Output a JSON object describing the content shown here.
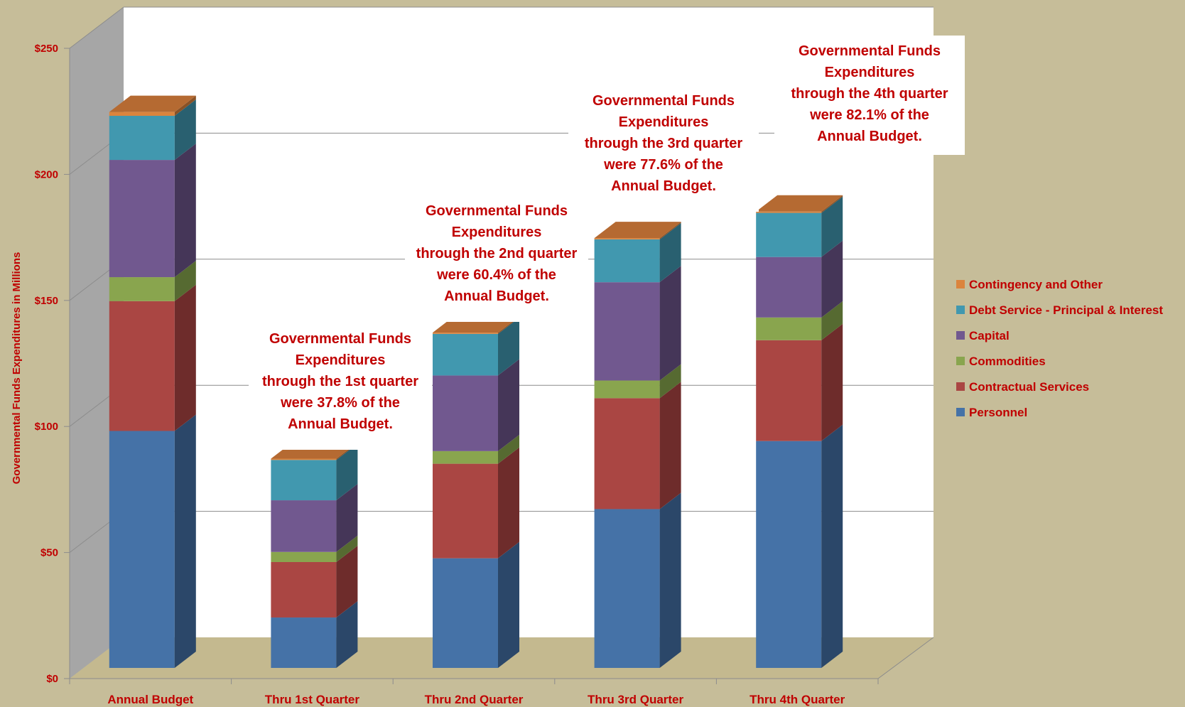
{
  "chart_data": {
    "type": "bar",
    "stacked": true,
    "ylabel": "Governmental Funds Expenditures in Millions",
    "ylim": [
      0,
      250
    ],
    "yticks": [
      "$0",
      "$50",
      "$100",
      "$150",
      "$200",
      "$250"
    ],
    "grid": true,
    "legend_position": "right",
    "categories": [
      "Annual Budget",
      "Thru 1st Quarter",
      "Thru 2nd Quarter",
      "Thru 3rd Quarter",
      "Thru 4th Quarter"
    ],
    "series": [
      {
        "name": "Personnel",
        "color": "#4572a7",
        "side": "#2b4769",
        "top": "#6a93c4",
        "values": [
          94,
          20,
          43.5,
          63,
          90
        ]
      },
      {
        "name": "Contractual Services",
        "color": "#aa4643",
        "side": "#6e2c2b",
        "top": "#c46a67",
        "values": [
          51.5,
          22,
          37.5,
          44,
          40
        ]
      },
      {
        "name": "Commodities",
        "color": "#89a54e",
        "side": "#566a31",
        "top": "#a6bf72",
        "values": [
          9.5,
          4,
          5,
          7,
          9
        ]
      },
      {
        "name": "Capital",
        "color": "#71588f",
        "side": "#453658",
        "top": "#9078ad",
        "values": [
          46.5,
          20.5,
          30,
          39,
          24
        ]
      },
      {
        "name": "Debt Service - Principal & Interest",
        "color": "#4198af",
        "side": "#296070",
        "top": "#62b3c8",
        "values": [
          17.5,
          16,
          16.5,
          17,
          17.5
        ]
      },
      {
        "name": "Contingency and Other",
        "color": "#db843d",
        "side": "#8a5226",
        "top": "#b56a32",
        "values": [
          1.5,
          0.5,
          0.5,
          0.5,
          0.5
        ]
      }
    ],
    "annotations": [
      {
        "category": 1,
        "lines": [
          "Governmental Funds",
          "Expenditures",
          "through the 1st quarter",
          "were 37.8% of the",
          "Annual Budget."
        ]
      },
      {
        "category": 2,
        "lines": [
          "Governmental Funds",
          "Expenditures",
          "through the 2nd quarter",
          "were 60.4% of the",
          "Annual Budget."
        ]
      },
      {
        "category": 3,
        "lines": [
          "Governmental Funds",
          "Expenditures",
          "through the 3rd quarter",
          "were 77.6% of the",
          "Annual Budget."
        ]
      },
      {
        "category": 4,
        "lines": [
          "Governmental Funds",
          "Expenditures",
          "through the 4th quarter",
          "were 82.1% of the",
          "Annual Budget."
        ]
      }
    ]
  }
}
